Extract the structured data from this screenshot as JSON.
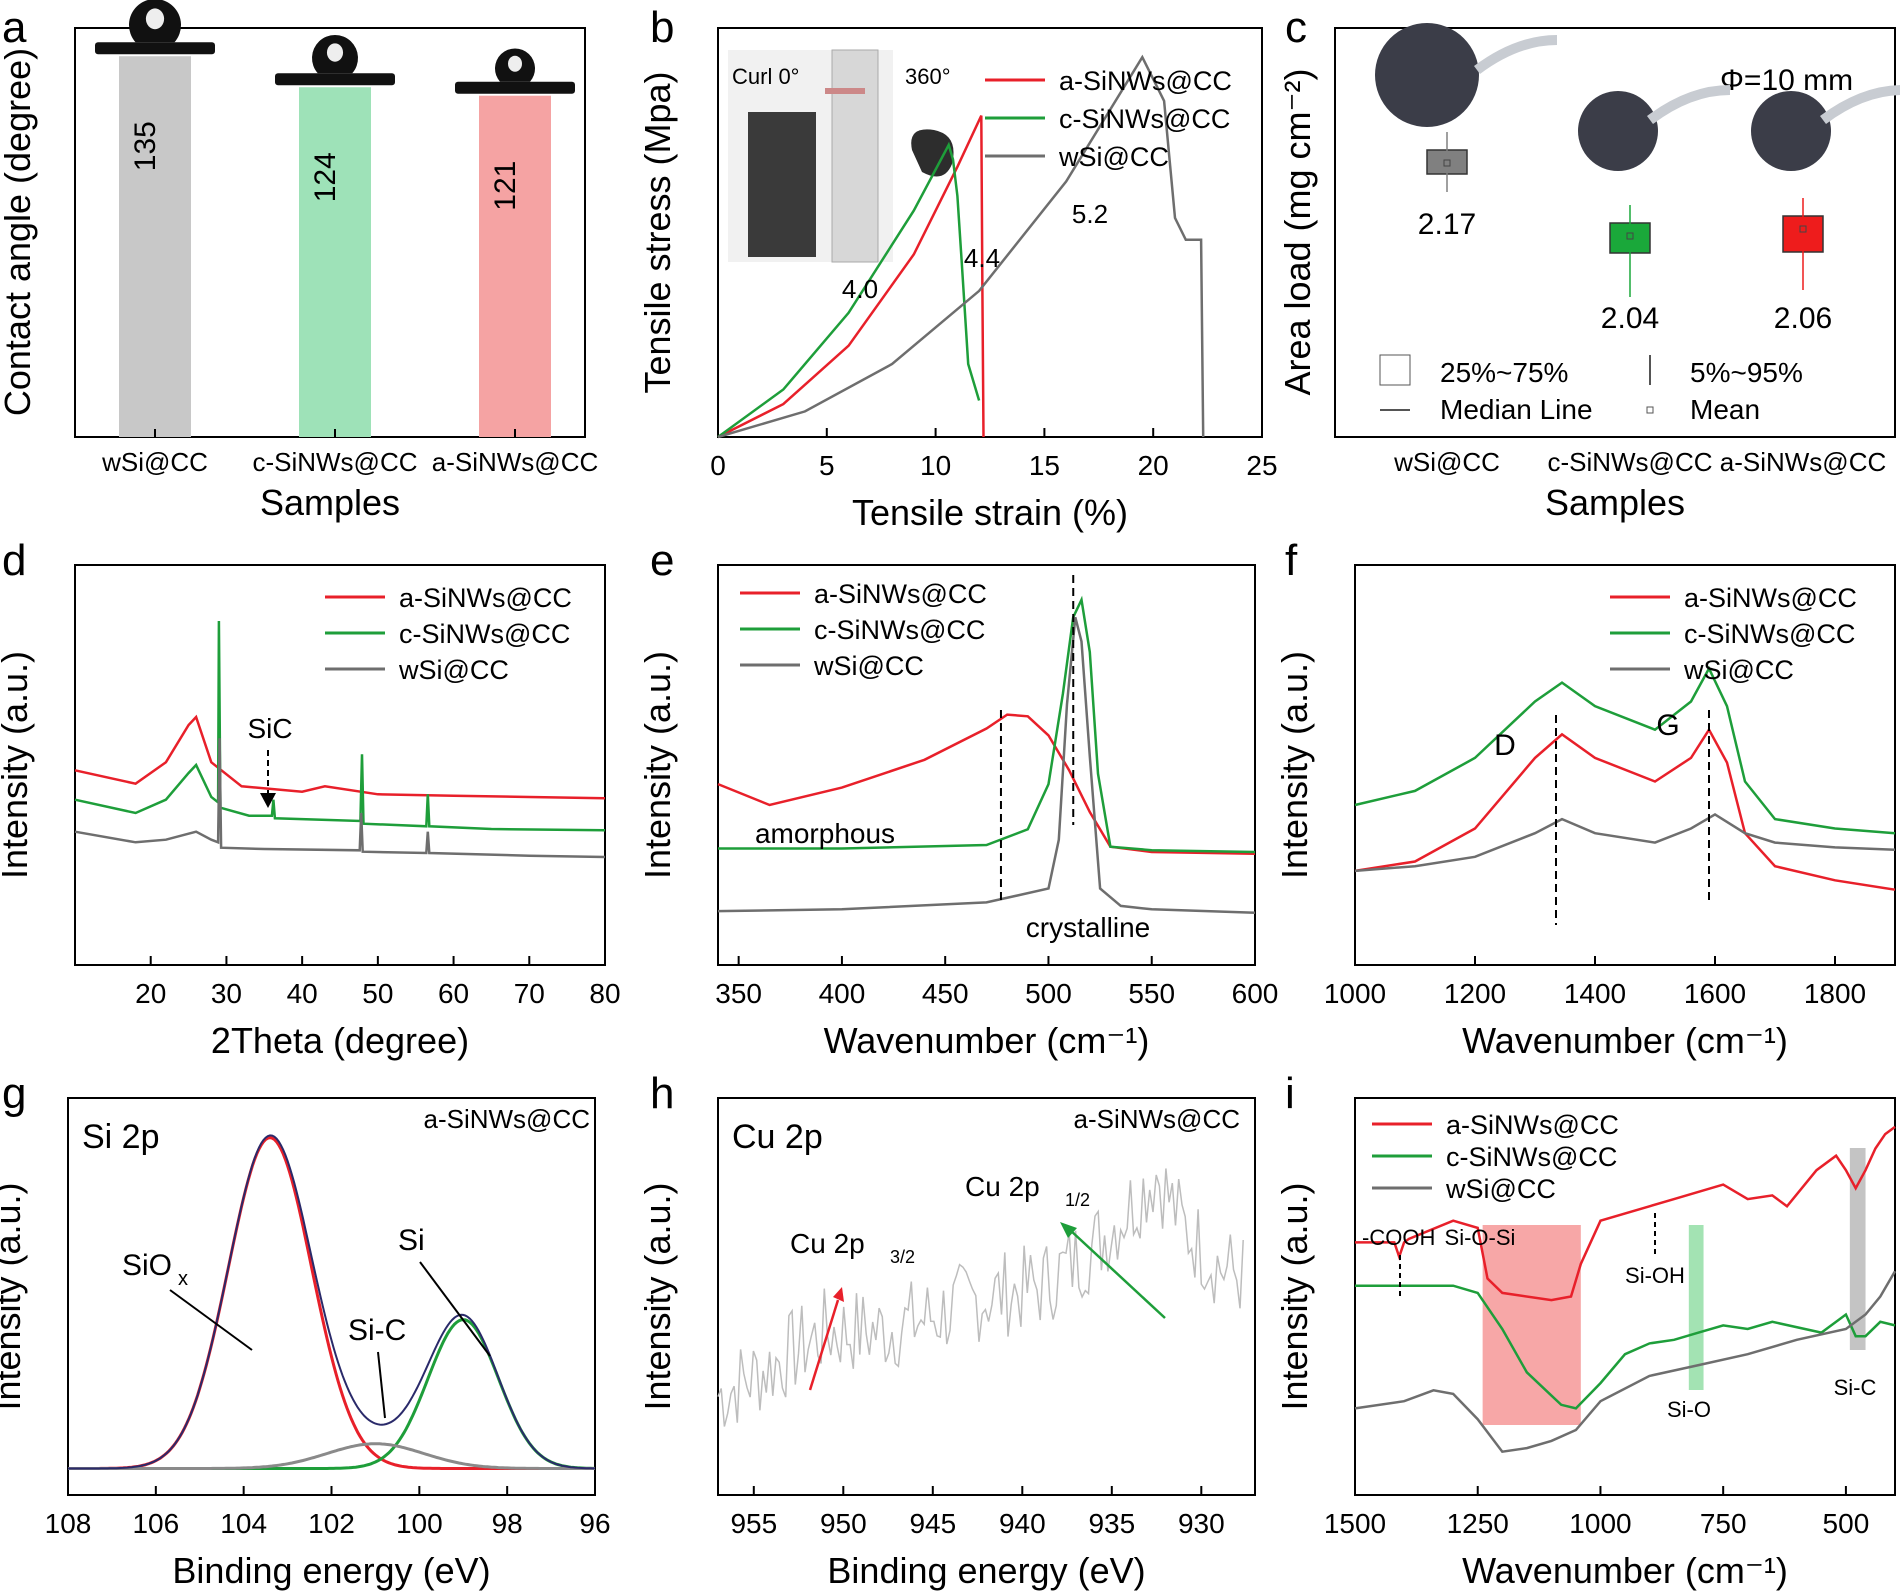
{
  "chart_data": [
    {
      "panel": "a",
      "type": "bar",
      "xlabel": "Samples",
      "ylabel": "Contact angle (degree)",
      "categories": [
        "wSi@CC",
        "c-SiNWs@CC",
        "a-SiNWs@CC"
      ],
      "values": [
        135,
        124,
        121
      ],
      "value_labels": [
        "135",
        "124",
        "121"
      ],
      "colors": [
        "#c8c8c8",
        "#9ee2b8",
        "#f5a3a3"
      ],
      "ylim": [
        0,
        145
      ]
    },
    {
      "panel": "b",
      "type": "line",
      "xlabel": "Tensile strain (%)",
      "ylabel": "Tensile stress (Mpa)",
      "xlim": [
        0,
        25
      ],
      "ylim": [
        0,
        5.6
      ],
      "xticks": [
        "0",
        "5",
        "10",
        "15",
        "20",
        "25"
      ],
      "inset_labels": [
        "Curl  0°",
        "360°"
      ],
      "series": [
        {
          "name": "a-SiNWs@CC",
          "color": "#e8202a",
          "x": [
            0,
            3,
            6,
            9,
            11,
            12.1,
            12.15,
            12.2
          ],
          "y": [
            0,
            0.45,
            1.25,
            2.5,
            3.7,
            4.4,
            2.0,
            0
          ]
        },
        {
          "name": "c-SiNWs@CC",
          "color": "#1e9e3a",
          "x": [
            0,
            3,
            6,
            9,
            10.6,
            10.8,
            11.0,
            11.2,
            11.5,
            12.0
          ],
          "y": [
            0,
            0.65,
            1.7,
            3.1,
            4.0,
            3.8,
            3.3,
            2.4,
            1.0,
            0.5
          ]
        },
        {
          "name": "wSi@CC",
          "color": "#6e6e6e",
          "x": [
            0,
            4,
            8,
            12,
            16,
            19.5,
            20.5,
            21.0,
            21.5,
            22.2,
            22.3
          ],
          "y": [
            0,
            0.35,
            1.0,
            2.0,
            3.5,
            5.2,
            4.6,
            3.0,
            2.7,
            2.7,
            0
          ]
        }
      ],
      "annotations": [
        "4.0",
        "4.4",
        "5.2"
      ]
    },
    {
      "panel": "c",
      "type": "box",
      "xlabel": "Samples",
      "ylabel": "Area load (mg cm⁻²)",
      "categories": [
        "wSi@CC",
        "c-SiNWs@CC",
        "a-SiNWs@CC"
      ],
      "means": [
        2.17,
        2.04,
        2.06
      ],
      "mean_labels": [
        "2.17",
        "2.04",
        "2.06"
      ],
      "colors": [
        "#808080",
        "#1aa83a",
        "#ee1c1c"
      ],
      "ylim": [
        1.8,
        2.3
      ],
      "annotation": "Φ=10 mm",
      "legend": [
        "25%~75%",
        "5%~95%",
        "Median Line",
        "Mean"
      ]
    },
    {
      "panel": "d",
      "type": "line",
      "xlabel": "2Theta (degree)",
      "ylabel": "Intensity (a.u.)",
      "xlim": [
        10,
        80
      ],
      "xticks": [
        "20",
        "30",
        "40",
        "50",
        "60",
        "70",
        "80"
      ],
      "annotation": "SiC",
      "series": [
        {
          "name": "a-SiNWs@CC",
          "color": "#e8202a",
          "x": [
            10,
            18,
            22,
            25,
            26,
            28,
            32,
            40,
            43,
            50,
            60,
            70,
            80
          ],
          "y": [
            3.3,
            2.8,
            3.6,
            5.0,
            5.3,
            3.6,
            2.7,
            2.5,
            2.7,
            2.4,
            2.35,
            2.3,
            2.25
          ]
        },
        {
          "name": "c-SiNWs@CC",
          "color": "#1e9e3a",
          "x": [
            10,
            18,
            22,
            25,
            26,
            28,
            28.9,
            29.0,
            29.2,
            33,
            36,
            36.2,
            36.4,
            47.7,
            47.9,
            48.1,
            56.4,
            56.6,
            56.8,
            65,
            80
          ],
          "y": [
            2.2,
            1.7,
            2.2,
            3.2,
            3.5,
            2.3,
            2.1,
            8.9,
            1.9,
            1.6,
            1.6,
            2.2,
            1.5,
            1.4,
            3.9,
            1.3,
            1.2,
            2.4,
            1.2,
            1.1,
            1.05
          ]
        },
        {
          "name": "wSi@CC",
          "color": "#6e6e6e",
          "x": [
            10,
            18,
            22,
            26,
            28,
            28.9,
            29.1,
            29.3,
            35,
            47.6,
            47.8,
            48.0,
            56.4,
            56.6,
            56.8,
            70,
            80
          ],
          "y": [
            1.0,
            0.6,
            0.7,
            1.0,
            0.7,
            0.6,
            4.5,
            0.4,
            0.35,
            0.3,
            1.7,
            0.25,
            0.2,
            1.0,
            0.2,
            0.1,
            0.05
          ]
        }
      ]
    },
    {
      "panel": "e",
      "type": "line",
      "xlabel": "Wavenumber (cm⁻¹)",
      "ylabel": "Intensity (a.u.)",
      "xlim": [
        340,
        600
      ],
      "xticks": [
        "350",
        "400",
        "450",
        "500",
        "550",
        "600"
      ],
      "annotations": [
        "amorphous",
        "crystalline"
      ],
      "series": [
        {
          "name": "a-SiNWs@CC",
          "color": "#e8202a",
          "x": [
            340,
            365,
            400,
            440,
            470,
            480,
            490,
            500,
            510,
            520,
            530,
            550,
            600
          ],
          "y": [
            4.2,
            3.6,
            4.1,
            4.9,
            5.8,
            6.2,
            6.15,
            5.6,
            4.6,
            3.4,
            2.4,
            2.25,
            2.2
          ]
        },
        {
          "name": "c-SiNWs@CC",
          "color": "#1e9e3a",
          "x": [
            340,
            400,
            470,
            490,
            500,
            507,
            512,
            516,
            520,
            524,
            530,
            550,
            600
          ],
          "y": [
            2.35,
            2.35,
            2.45,
            2.9,
            4.2,
            6.8,
            9.0,
            9.5,
            8.0,
            4.5,
            2.4,
            2.3,
            2.25
          ]
        },
        {
          "name": "wSi@CC",
          "color": "#6e6e6e",
          "x": [
            340,
            400,
            470,
            500,
            505,
            509,
            513,
            516,
            520,
            525,
            535,
            550,
            600
          ],
          "y": [
            0.55,
            0.6,
            0.8,
            1.2,
            2.6,
            6.5,
            9.0,
            8.3,
            5.0,
            1.2,
            0.7,
            0.6,
            0.5
          ]
        }
      ]
    },
    {
      "panel": "f",
      "type": "line",
      "xlabel": "Wavenumber (cm⁻¹)",
      "ylabel": "Intensity (a.u.)",
      "xlim": [
        1000,
        1900
      ],
      "xticks": [
        "1000",
        "1200",
        "1400",
        "1600",
        "1800"
      ],
      "annotations": [
        "D",
        "G"
      ],
      "series": [
        {
          "name": "a-SiNWs@CC",
          "color": "#e8202a",
          "x": [
            1000,
            1100,
            1200,
            1300,
            1345,
            1400,
            1500,
            1560,
            1590,
            1620,
            1650,
            1700,
            1800,
            1900
          ],
          "y": [
            2.0,
            2.2,
            2.9,
            4.4,
            4.9,
            4.4,
            3.9,
            4.4,
            5.0,
            4.3,
            2.8,
            2.1,
            1.8,
            1.6
          ]
        },
        {
          "name": "c-SiNWs@CC",
          "color": "#1e9e3a",
          "x": [
            1000,
            1100,
            1200,
            1300,
            1345,
            1400,
            1500,
            1560,
            1590,
            1620,
            1650,
            1700,
            1800,
            1900
          ],
          "y": [
            3.4,
            3.7,
            4.4,
            5.6,
            6.0,
            5.5,
            5.0,
            5.6,
            6.3,
            5.5,
            3.9,
            3.1,
            2.9,
            2.8
          ]
        },
        {
          "name": "wSi@CC",
          "color": "#6e6e6e",
          "x": [
            1000,
            1100,
            1200,
            1300,
            1345,
            1400,
            1500,
            1560,
            1600,
            1650,
            1700,
            1800,
            1900
          ],
          "y": [
            2.0,
            2.1,
            2.3,
            2.8,
            3.1,
            2.8,
            2.6,
            2.9,
            3.2,
            2.8,
            2.6,
            2.5,
            2.45
          ]
        }
      ]
    },
    {
      "panel": "g",
      "type": "line",
      "xlabel": "Binding energy (eV)",
      "ylabel": "Intensity (a.u.)",
      "xlim": [
        108,
        96
      ],
      "reversed_x": true,
      "xticks": [
        "108",
        "106",
        "104",
        "102",
        "100",
        "98",
        "96"
      ],
      "title": "Si 2p",
      "sample": "a-SiNWs@CC",
      "annotations": [
        "SiO",
        "x",
        "Si",
        "Si-C"
      ],
      "peaks": [
        {
          "name": "SiOx",
          "center": 103.4,
          "height": 10.0,
          "width": 0.95,
          "color": "#e8202a"
        },
        {
          "name": "Si",
          "center": 99.0,
          "height": 4.5,
          "width": 0.8,
          "color": "#1e9e3a"
        },
        {
          "name": "Si-C",
          "center": 101.0,
          "height": 0.75,
          "width": 1.1,
          "color": "#8a8a8a"
        }
      ],
      "envelope_color": "#2a2a6a"
    },
    {
      "panel": "h",
      "type": "line",
      "xlabel": "Binding energy (eV)",
      "ylabel": "Intensity (a.u.)",
      "xlim": [
        957,
        927
      ],
      "reversed_x": true,
      "xticks": [
        "955",
        "950",
        "945",
        "940",
        "935",
        "930"
      ],
      "title": "Cu 2p",
      "sample": "a-SiNWs@CC",
      "annotations": [
        "Cu 2p",
        "3/2",
        "Cu 2p",
        "1/2"
      ],
      "series": [
        {
          "name": "Cu 2p",
          "color": "#bdbdbd",
          "x": [
            957,
            954,
            951,
            948,
            945,
            942,
            939,
            936,
            934,
            932.5,
            931,
            929,
            927.5
          ],
          "y": [
            2.0,
            2.6,
            3.3,
            3.3,
            3.6,
            4.0,
            4.2,
            5.0,
            5.8,
            6.5,
            5.4,
            4.6,
            4.4
          ]
        }
      ]
    },
    {
      "panel": "i",
      "type": "line",
      "xlabel": "Wavenumber (cm⁻¹)",
      "ylabel": "Intensity (a.u.)",
      "xlim": [
        1500,
        400
      ],
      "reversed_x": true,
      "xticks": [
        "1500",
        "1250",
        "1000",
        "750",
        "500"
      ],
      "annotations": [
        "-COOH",
        "Si-O-Si",
        "Si-OH",
        "Si-O",
        "Si-C"
      ],
      "highlight_bands": [
        {
          "label": "Si-O-Si",
          "from": 1240,
          "to": 1040,
          "color": "#f7a7a7"
        },
        {
          "label": "Si-O",
          "from": 820,
          "to": 790,
          "color": "#a3e3b3"
        },
        {
          "label": "Si-C",
          "from": 492,
          "to": 460,
          "color": "#c4c4c4"
        }
      ],
      "series": [
        {
          "name": "a-SiNWs@CC",
          "color": "#e8202a",
          "x": [
            1500,
            1420,
            1410,
            1400,
            1390,
            1300,
            1250,
            1230,
            1200,
            1100,
            1060,
            1040,
            1000,
            900,
            850,
            750,
            700,
            650,
            620,
            560,
            520,
            500,
            480,
            460,
            440,
            420,
            400
          ],
          "y": [
            7.0,
            7.0,
            6.6,
            7.0,
            7.1,
            7.6,
            7.4,
            6.0,
            5.6,
            5.4,
            5.5,
            6.4,
            7.6,
            8.0,
            8.2,
            8.6,
            8.2,
            8.3,
            8.0,
            9.0,
            9.4,
            9.0,
            8.5,
            9.0,
            9.6,
            10.0,
            10.2
          ]
        },
        {
          "name": "c-SiNWs@CC",
          "color": "#1e9e3a",
          "x": [
            1500,
            1300,
            1250,
            1200,
            1150,
            1080,
            1050,
            1000,
            950,
            900,
            850,
            800,
            750,
            700,
            650,
            550,
            500,
            480,
            460,
            430,
            400
          ],
          "y": [
            5.8,
            5.8,
            5.6,
            4.6,
            3.4,
            2.5,
            2.4,
            3.1,
            3.9,
            4.2,
            4.3,
            4.5,
            4.7,
            4.6,
            4.8,
            4.5,
            5.0,
            4.4,
            4.4,
            4.8,
            4.7
          ]
        },
        {
          "name": "wSi@CC",
          "color": "#6e6e6e",
          "x": [
            1500,
            1400,
            1340,
            1300,
            1250,
            1200,
            1150,
            1100,
            1050,
            1000,
            900,
            800,
            700,
            600,
            500,
            460,
            430,
            400
          ],
          "y": [
            2.4,
            2.6,
            2.9,
            2.8,
            2.1,
            1.2,
            1.3,
            1.5,
            1.8,
            2.6,
            3.3,
            3.6,
            3.9,
            4.3,
            4.6,
            5.0,
            5.5,
            6.2
          ]
        }
      ]
    }
  ]
}
